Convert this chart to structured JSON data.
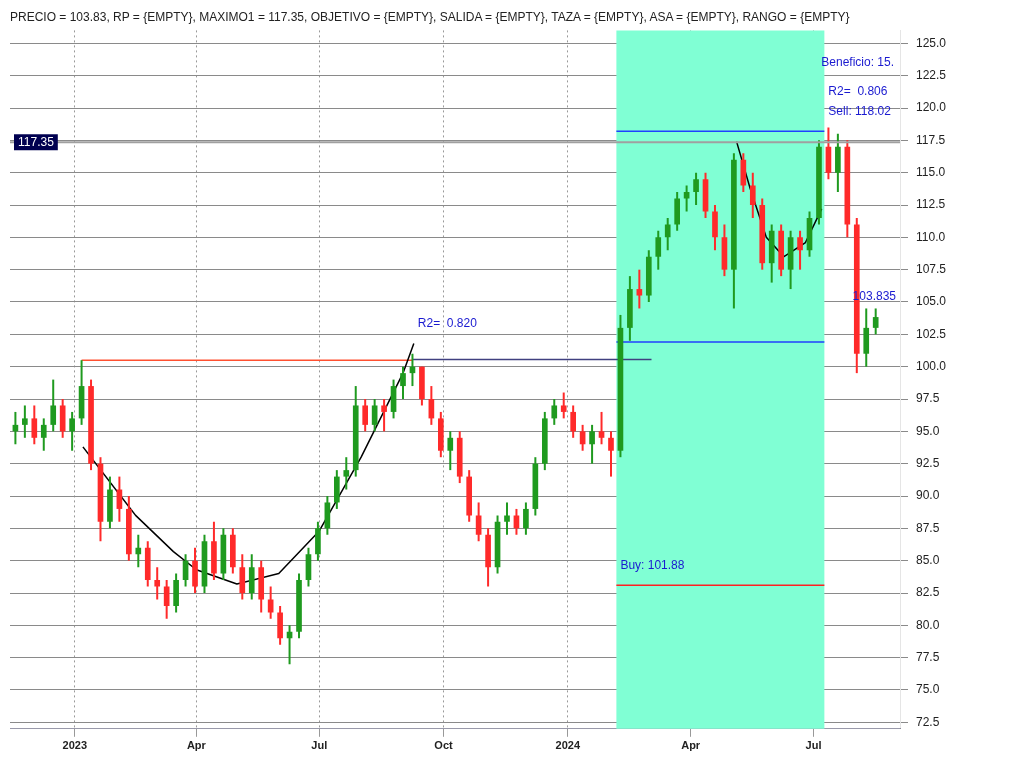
{
  "chart_data": {
    "type": "candlestick",
    "title": "PRECIO = 103.83, RP = {EMPTY}, MAXIMO1 = 117.35, OBJETIVO = {EMPTY}, SALIDA = {EMPTY}, TAZA = {EMPTY}, ASA = {EMPTY}, RANGO = {EMPTY}",
    "x": [
      "2022-11-18",
      "2022-11-25",
      "2022-12-02",
      "2022-12-09",
      "2022-12-16",
      "2022-12-23",
      "2022-12-30",
      "2023-01-06",
      "2023-01-13",
      "2023-01-20",
      "2023-01-27",
      "2023-02-03",
      "2023-02-10",
      "2023-02-17",
      "2023-02-24",
      "2023-03-03",
      "2023-03-10",
      "2023-03-17",
      "2023-03-24",
      "2023-03-31",
      "2023-04-07",
      "2023-04-14",
      "2023-04-21",
      "2023-04-28",
      "2023-05-05",
      "2023-05-12",
      "2023-05-19",
      "2023-05-26",
      "2023-06-02",
      "2023-06-09",
      "2023-06-16",
      "2023-06-23",
      "2023-06-30",
      "2023-07-07",
      "2023-07-14",
      "2023-07-21",
      "2023-07-28",
      "2023-08-04",
      "2023-08-11",
      "2023-08-18",
      "2023-08-25",
      "2023-09-01",
      "2023-09-08",
      "2023-09-15",
      "2023-09-22",
      "2023-09-29",
      "2023-10-06",
      "2023-10-13",
      "2023-10-20",
      "2023-10-27",
      "2023-11-03",
      "2023-11-10",
      "2023-11-17",
      "2023-11-24",
      "2023-12-01",
      "2023-12-08",
      "2023-12-15",
      "2023-12-22",
      "2023-12-29",
      "2024-01-05",
      "2024-01-12",
      "2024-01-19",
      "2024-01-26",
      "2024-02-02",
      "2024-02-09",
      "2024-02-16",
      "2024-02-23",
      "2024-03-01",
      "2024-03-08",
      "2024-03-15",
      "2024-03-22",
      "2024-03-29",
      "2024-04-05",
      "2024-04-12",
      "2024-04-19",
      "2024-04-26",
      "2024-05-03",
      "2024-05-10",
      "2024-05-17",
      "2024-05-24",
      "2024-05-31",
      "2024-06-07",
      "2024-06-14",
      "2024-06-21",
      "2024-06-28",
      "2024-07-05",
      "2024-07-12",
      "2024-07-19",
      "2024-07-26",
      "2024-08-02",
      "2024-08-09",
      "2024-08-16"
    ],
    "ohlc": [
      [
        95,
        96.5,
        94,
        95.5
      ],
      [
        95.5,
        97,
        94.5,
        96
      ],
      [
        96,
        97,
        94,
        94.5
      ],
      [
        94.5,
        96,
        93.5,
        95.5
      ],
      [
        95.5,
        99,
        95,
        97
      ],
      [
        97,
        97.5,
        94.5,
        95
      ],
      [
        95,
        96.5,
        93.5,
        96
      ],
      [
        96,
        100.5,
        95.5,
        98.5
      ],
      [
        98.5,
        99,
        92,
        92.5
      ],
      [
        92.5,
        93,
        86.5,
        88
      ],
      [
        88,
        91.5,
        87.5,
        90.5
      ],
      [
        90.5,
        91.5,
        88,
        89
      ],
      [
        89,
        90,
        85,
        85.5
      ],
      [
        85.5,
        87,
        84.5,
        86
      ],
      [
        86,
        86.5,
        83,
        83.5
      ],
      [
        83.5,
        84.5,
        82,
        83
      ],
      [
        83,
        83.5,
        80.5,
        81.5
      ],
      [
        81.5,
        84,
        81,
        83.5
      ],
      [
        83.5,
        85.5,
        83,
        85
      ],
      [
        85,
        86,
        82.5,
        83
      ],
      [
        83,
        87,
        82.5,
        86.5
      ],
      [
        86.5,
        88,
        83.5,
        84
      ],
      [
        84,
        87.5,
        83.5,
        87
      ],
      [
        87,
        87.5,
        84,
        84.5
      ],
      [
        84.5,
        85.5,
        82,
        82.5
      ],
      [
        82.5,
        85.5,
        82,
        84.5
      ],
      [
        84.5,
        85,
        81,
        82
      ],
      [
        82,
        83,
        80.5,
        81
      ],
      [
        81,
        81.5,
        78.5,
        79
      ],
      [
        79,
        80,
        77,
        79.5
      ],
      [
        79.5,
        84,
        79,
        83.5
      ],
      [
        83.5,
        86,
        83,
        85.5
      ],
      [
        85.5,
        88,
        85,
        87.5
      ],
      [
        87.5,
        90,
        87,
        89.5
      ],
      [
        89.5,
        92,
        89,
        91.5
      ],
      [
        91.5,
        93,
        90.5,
        92
      ],
      [
        92,
        98.5,
        91.5,
        97
      ],
      [
        97,
        97.5,
        95,
        95.5
      ],
      [
        95.5,
        97.5,
        95,
        97
      ],
      [
        97,
        97.5,
        95,
        96.5
      ],
      [
        96.5,
        99,
        96,
        98.5
      ],
      [
        98.5,
        100,
        97.5,
        99.5
      ],
      [
        99.5,
        101,
        98.5,
        100
      ],
      [
        100,
        100,
        97,
        97.5
      ],
      [
        97.5,
        98.5,
        95.5,
        96
      ],
      [
        96,
        96.5,
        93,
        93.5
      ],
      [
        93.5,
        95,
        92,
        94.5
      ],
      [
        94.5,
        95,
        91,
        91.5
      ],
      [
        91.5,
        92,
        88,
        88.5
      ],
      [
        88.5,
        89.5,
        86.5,
        87
      ],
      [
        87,
        87.5,
        83,
        84.5
      ],
      [
        84.5,
        88.5,
        84,
        88
      ],
      [
        88,
        89.5,
        87,
        88.5
      ],
      [
        88.5,
        89,
        87,
        87.5
      ],
      [
        87.5,
        89.5,
        87,
        89
      ],
      [
        89,
        93,
        88.5,
        92.5
      ],
      [
        92.5,
        96.5,
        92,
        96
      ],
      [
        96,
        97.5,
        95.5,
        97
      ],
      [
        97,
        98,
        96,
        96.5
      ],
      [
        96.5,
        97,
        94.5,
        95
      ],
      [
        95,
        95.5,
        93.5,
        94
      ],
      [
        94,
        95.5,
        92.5,
        95
      ],
      [
        95,
        96.5,
        94,
        94.5
      ],
      [
        94.5,
        95,
        91.5,
        93.5
      ],
      [
        93.5,
        104,
        93,
        103
      ],
      [
        103,
        107,
        102,
        106
      ],
      [
        106,
        107.5,
        104.5,
        105.5
      ],
      [
        105.5,
        109,
        105,
        108.5
      ],
      [
        108.5,
        110.5,
        107.5,
        110
      ],
      [
        110,
        111.5,
        109,
        111
      ],
      [
        111,
        113.5,
        110.5,
        113
      ],
      [
        113,
        114,
        112,
        113.5
      ],
      [
        113.5,
        115,
        112.5,
        114.5
      ],
      [
        114.5,
        115,
        111.5,
        112
      ],
      [
        112,
        112.5,
        109,
        110
      ],
      [
        110,
        111,
        107,
        107.5
      ],
      [
        107.5,
        116.5,
        104.5,
        116
      ],
      [
        116,
        116.5,
        113.5,
        114
      ],
      [
        114,
        115,
        111.5,
        112.5
      ],
      [
        112.5,
        113,
        107.5,
        108
      ],
      [
        108,
        111,
        106.5,
        110.5
      ],
      [
        110.5,
        111,
        107,
        107.5
      ],
      [
        107.5,
        110.5,
        106,
        110
      ],
      [
        110,
        110.5,
        107.5,
        109
      ],
      [
        109,
        112,
        108.5,
        111.5
      ],
      [
        111.5,
        117.5,
        111,
        117
      ],
      [
        117,
        118.5,
        114.5,
        115
      ],
      [
        115,
        118,
        113.5,
        117
      ],
      [
        117,
        117.5,
        110,
        111
      ],
      [
        111,
        111.5,
        99.5,
        101
      ],
      [
        101,
        104.5,
        100,
        103
      ],
      [
        103,
        104.5,
        102.5,
        103.835
      ]
    ],
    "series": [
      {
        "type": "line",
        "color": "#000000",
        "x": [
          "2023-01-07",
          "2023-02-15",
          "2023-03-15",
          "2023-04-01",
          "2023-05-01",
          "2023-06-01",
          "2023-07-01",
          "2023-08-01",
          "2023-09-01",
          "2023-09-09"
        ],
        "values": [
          93.8,
          88.5,
          85.7,
          84.3,
          83.2,
          84,
          87.3,
          93,
          99.5,
          101.8
        ]
      },
      {
        "type": "line",
        "color": "#ff5030",
        "x": [
          "2023-01-06",
          "2023-09-08"
        ],
        "values": [
          100.5,
          100.5
        ]
      },
      {
        "type": "line",
        "color": "#404080",
        "x": [
          "2023-09-08",
          "2024-03-03"
        ],
        "values": [
          100.55,
          100.55
        ]
      },
      {
        "type": "line",
        "color": "#000000",
        "x": [
          "2024-05-05",
          "2024-05-15",
          "2024-05-27",
          "2024-06-09",
          "2024-06-25",
          "2024-07-07"
        ],
        "values": [
          117.4,
          113.8,
          110,
          108.5,
          109.6,
          112.2
        ]
      },
      {
        "type": "line",
        "color": "#2040ff",
        "x": [
          "2024-02-06",
          "2024-07-09"
        ],
        "values": [
          118.2,
          118.2
        ]
      },
      {
        "type": "line",
        "color": "#2040ff",
        "x": [
          "2024-02-06",
          "2024-07-09"
        ],
        "values": [
          101.9,
          101.9
        ]
      },
      {
        "type": "line",
        "color": "#ff2020",
        "x": [
          "2024-02-06",
          "2024-07-09"
        ],
        "values": [
          83.1,
          83.1
        ]
      }
    ],
    "bands": [
      {
        "axis": "x",
        "from": "2024-02-06",
        "to": "2024-07-09",
        "color": "#80ffd4"
      }
    ],
    "ref_lines": [
      {
        "axis": "y",
        "value": 117.35,
        "label": "117.35",
        "color": "#a0a0a0"
      }
    ],
    "annotations": [
      {
        "text": "R2=  0.820",
        "x": "2023-09-09",
        "y": 101.8
      },
      {
        "text": "Sell: 118.02",
        "x": "2024-07-09",
        "y": 118.2
      },
      {
        "text": "R2=  0.806",
        "x": "2024-07-09",
        "y": 118.2
      },
      "Beneficio: 15.",
      {
        "text": "Buy: 101.88",
        "x": "2024-02-06",
        "y": 83.1
      },
      {
        "text": "103.835",
        "x": "2024-08-16",
        "y": 103.835
      }
    ],
    "xlim": [
      "2022-11-14",
      "2024-09-03"
    ],
    "ylim": [
      72,
      126
    ],
    "xticks": [
      {
        "value": "2023-01-01",
        "label": "2023"
      },
      {
        "value": "2023-04-01",
        "label": "Apr"
      },
      {
        "value": "2023-07-01",
        "label": "Jul"
      },
      {
        "value": "2023-10-01",
        "label": "Oct"
      },
      {
        "value": "2024-01-01",
        "label": "2024"
      },
      {
        "value": "2024-04-01",
        "label": "Apr"
      },
      {
        "value": "2024-07-01",
        "label": "Jul"
      }
    ],
    "yticks": [
      {
        "value": 72.5,
        "label": "72.5"
      },
      {
        "value": 75,
        "label": "75.0"
      },
      {
        "value": 77.5,
        "label": "77.5"
      },
      {
        "value": 80,
        "label": "80.0"
      },
      {
        "value": 82.5,
        "label": "82.5"
      },
      {
        "value": 85,
        "label": "85.0"
      },
      {
        "value": 87.5,
        "label": "87.5"
      },
      {
        "value": 90,
        "label": "90.0"
      },
      {
        "value": 92.5,
        "label": "92.5"
      },
      {
        "value": 95,
        "label": "95.0"
      },
      {
        "value": 97.5,
        "label": "97.5"
      },
      {
        "value": 100,
        "label": "100.0"
      },
      {
        "value": 102.5,
        "label": "102.5"
      },
      {
        "value": 105,
        "label": "105.0"
      },
      {
        "value": 107.5,
        "label": "107.5"
      },
      {
        "value": 110,
        "label": "110.0"
      },
      {
        "value": 112.5,
        "label": "112.5"
      },
      {
        "value": 115,
        "label": "115.0"
      },
      {
        "value": 117.5,
        "label": "117.5"
      },
      {
        "value": 120,
        "label": "120.0"
      },
      {
        "value": 122.5,
        "label": "122.5"
      },
      {
        "value": 125,
        "label": "125.0"
      }
    ],
    "grid": true,
    "legend": false
  }
}
